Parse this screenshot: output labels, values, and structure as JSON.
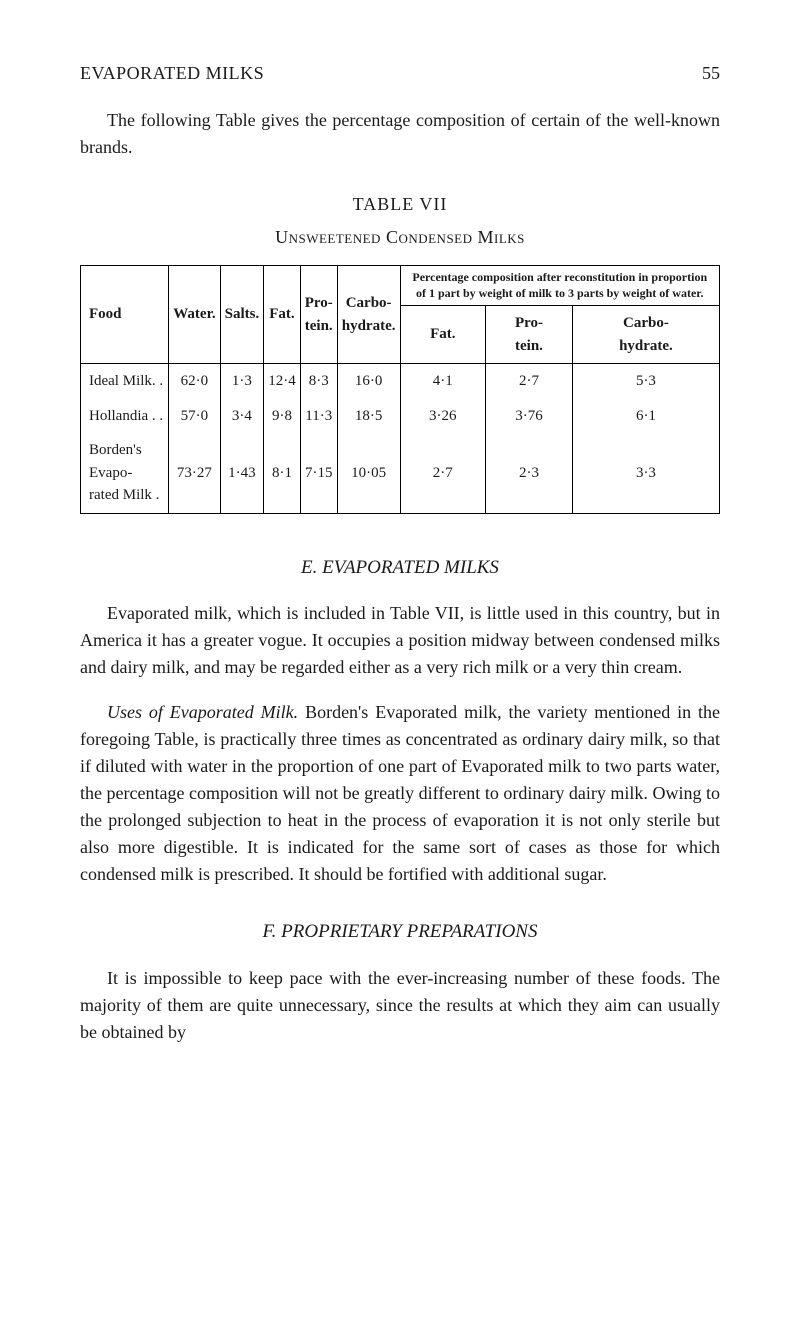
{
  "header": {
    "running_head": "EVAPORATED MILKS",
    "page_number": "55"
  },
  "intro_paragraph": "The following Table gives the percentage composition of certain of the well-known brands.",
  "table": {
    "caption": "TABLE VII",
    "subtitle": "Unsweetened Condensed Milks",
    "colgroup_note": "Percentage composition after reconstitution in proportion of 1 part by weight of milk to 3 parts by weight of water.",
    "columns_main": [
      "Food",
      "Water.",
      "Salts.",
      "Fat.",
      "Pro-\ntein.",
      "Carbo-\nhydrate."
    ],
    "columns_sub": [
      "Fat.",
      "Pro-\ntein.",
      "Carbo-\nhydrate."
    ],
    "rows": [
      {
        "food": "Ideal Milk.  .",
        "water": "62·0",
        "salts": "1·3",
        "fat": "12·4",
        "protein": "8·3",
        "carb": "16·0",
        "r_fat": "4·1",
        "r_protein": "2·7",
        "r_carb": "5·3"
      },
      {
        "food": "Hollandia .  .",
        "water": "57·0",
        "salts": "3·4",
        "fat": "9·8",
        "protein": "11·3",
        "carb": "18·5",
        "r_fat": "3·26",
        "r_protein": "3·76",
        "r_carb": "6·1"
      },
      {
        "food": "Borden's Evapo-\n  rated Milk .",
        "water": "73·27",
        "salts": "1·43",
        "fat": "8·1",
        "protein": "7·15",
        "carb": "10·05",
        "r_fat": "2·7",
        "r_protein": "2·3",
        "r_carb": "3·3"
      }
    ]
  },
  "section_e": {
    "heading": "E.  EVAPORATED MILKS",
    "para1": "Evaporated milk, which is included in Table VII, is little used in this country, but in America it has a greater vogue. It occupies a position midway between condensed milks and dairy milk, and may be regarded either as a very rich milk or a very thin cream.",
    "para2_lead": "Uses of Evaporated Milk.",
    "para2_rest": " Borden's Evaporated milk, the variety mentioned in the foregoing Table, is practically three times as concentrated as ordinary dairy milk, so that if diluted with water in the proportion of one part of Evaporated milk to two parts water, the percentage composition will not be greatly different to ordinary dairy milk. Owing to the prolonged subjection to heat in the process of evaporation it is not only sterile but also more digestible. It is indicated for the same sort of cases as those for which condensed milk is prescribed. It should be fortified with additional sugar."
  },
  "section_f": {
    "heading": "F.  PROPRIETARY PREPARATIONS",
    "para1": "It is impossible to keep pace with the ever-increasing number of these foods. The majority of them are quite unnecessary, since the results at which they aim can usually be obtained by"
  }
}
